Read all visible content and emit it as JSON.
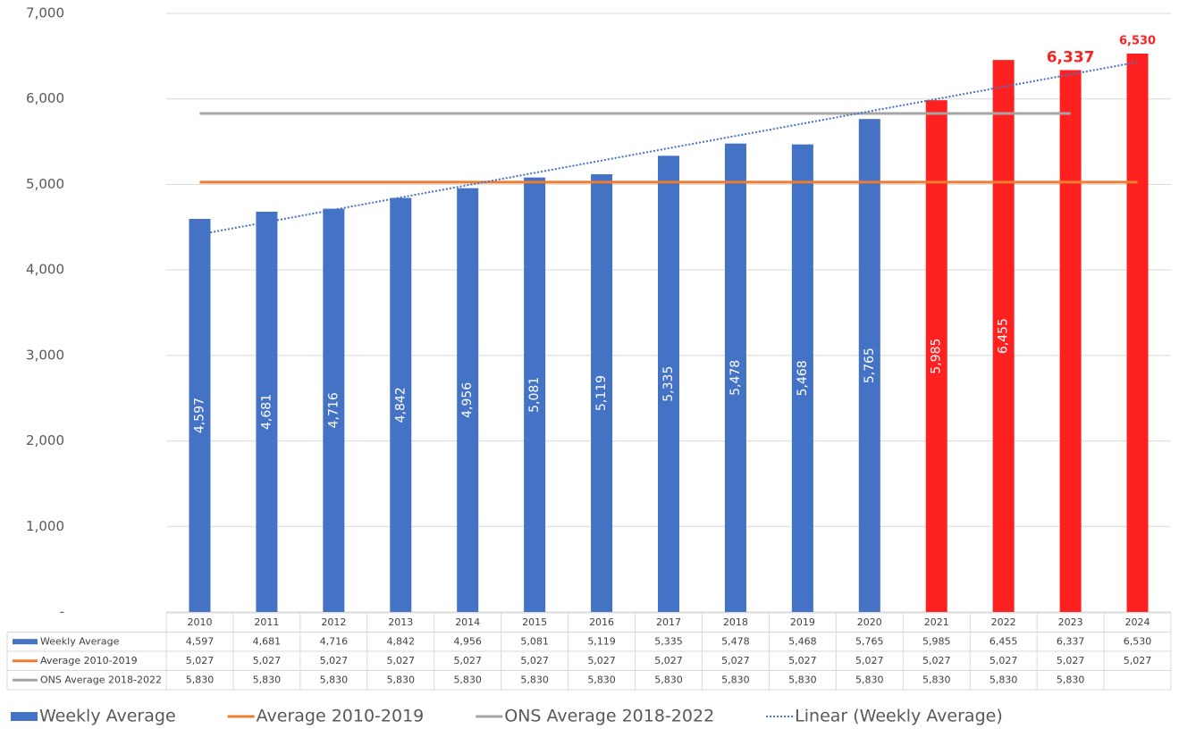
{
  "chart_data": {
    "type": "bar",
    "categories": [
      "2010",
      "2011",
      "2012",
      "2013",
      "2014",
      "2015",
      "2016",
      "2017",
      "2018",
      "2019",
      "2020",
      "2021",
      "2022",
      "2023",
      "2024"
    ],
    "series": [
      {
        "name": "Weekly Average",
        "type": "bar",
        "color": "#4472c4",
        "colors": [
          "#4472c4",
          "#4472c4",
          "#4472c4",
          "#4472c4",
          "#4472c4",
          "#4472c4",
          "#4472c4",
          "#4472c4",
          "#4472c4",
          "#4472c4",
          "#4472c4",
          "#ff2020",
          "#ff2020",
          "#ff2020",
          "#ff2020"
        ],
        "values": [
          4597,
          4681,
          4716,
          4842,
          4956,
          5081,
          5119,
          5335,
          5478,
          5468,
          5765,
          5985,
          6455,
          6337,
          6530
        ],
        "value_labels": [
          "4,597",
          "4,681",
          "4,716",
          "4,842",
          "4,956",
          "5,081",
          "5,119",
          "5,335",
          "5,478",
          "5,468",
          "5,765",
          "5,985",
          "6,455",
          "6,337",
          "6,530"
        ]
      },
      {
        "name": "Average 2010-2019",
        "type": "line",
        "color": "#ed7d31",
        "values": [
          5027,
          5027,
          5027,
          5027,
          5027,
          5027,
          5027,
          5027,
          5027,
          5027,
          5027,
          5027,
          5027,
          5027,
          5027
        ],
        "value_labels": [
          "5,027",
          "5,027",
          "5,027",
          "5,027",
          "5,027",
          "5,027",
          "5,027",
          "5,027",
          "5,027",
          "5,027",
          "5,027",
          "5,027",
          "5,027",
          "5,027",
          "5,027"
        ]
      },
      {
        "name": "ONS Average 2018-2022",
        "type": "line",
        "color": "#a5a5a5",
        "values": [
          5830,
          5830,
          5830,
          5830,
          5830,
          5830,
          5830,
          5830,
          5830,
          5830,
          5830,
          5830,
          5830,
          5830,
          null
        ],
        "value_labels": [
          "5,830",
          "5,830",
          "5,830",
          "5,830",
          "5,830",
          "5,830",
          "5,830",
          "5,830",
          "5,830",
          "5,830",
          "5,830",
          "5,830",
          "5,830",
          "5,830",
          null
        ]
      }
    ],
    "trendline": {
      "name": "Linear (Weekly Average)",
      "color": "#4472c4"
    },
    "ylim": [
      0,
      7000
    ],
    "yticks": [
      {
        "value": 0,
        "label": "-"
      },
      {
        "value": 1000,
        "label": "1,000"
      },
      {
        "value": 2000,
        "label": "2,000"
      },
      {
        "value": 3000,
        "label": "3,000"
      },
      {
        "value": 4000,
        "label": "4,000"
      },
      {
        "value": 5000,
        "label": "5,000"
      },
      {
        "value": 6000,
        "label": "6,000"
      },
      {
        "value": 7000,
        "label": "7,000"
      }
    ],
    "grid": true,
    "data_table": true,
    "legend": "bottom"
  }
}
